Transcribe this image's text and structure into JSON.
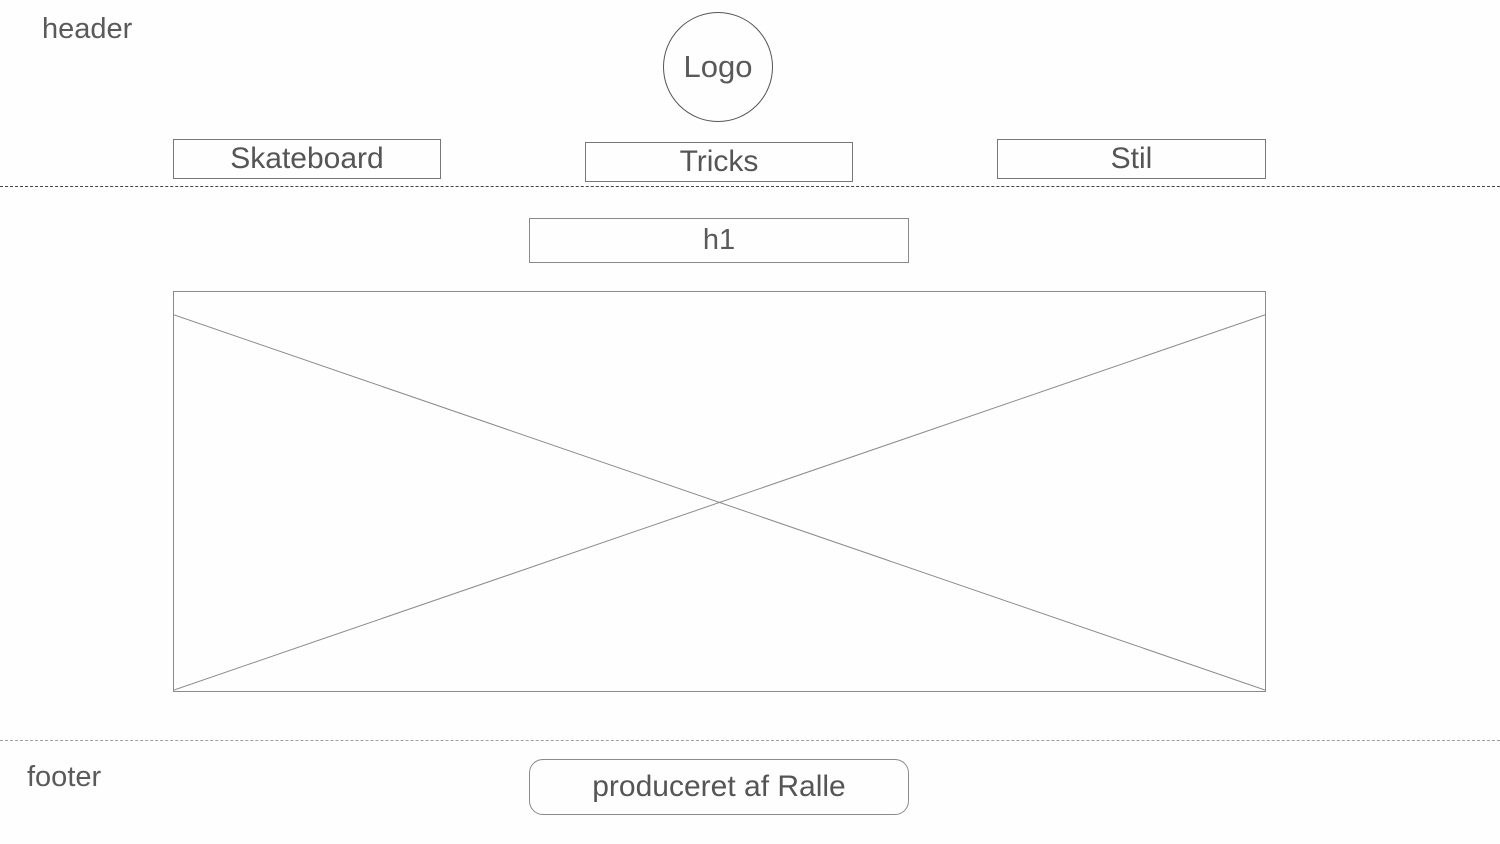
{
  "header": {
    "label": "header",
    "logo_text": "Logo",
    "nav": [
      {
        "label": "Skateboard"
      },
      {
        "label": "Tricks"
      },
      {
        "label": "Stil"
      }
    ]
  },
  "main": {
    "heading_placeholder": "h1"
  },
  "footer": {
    "label": "footer",
    "credit": "produceret af Ralle"
  },
  "colors": {
    "header_divider": "#444444",
    "footer_divider": "#9a9a9a",
    "placeholder_stroke": "#8a8a8a"
  }
}
